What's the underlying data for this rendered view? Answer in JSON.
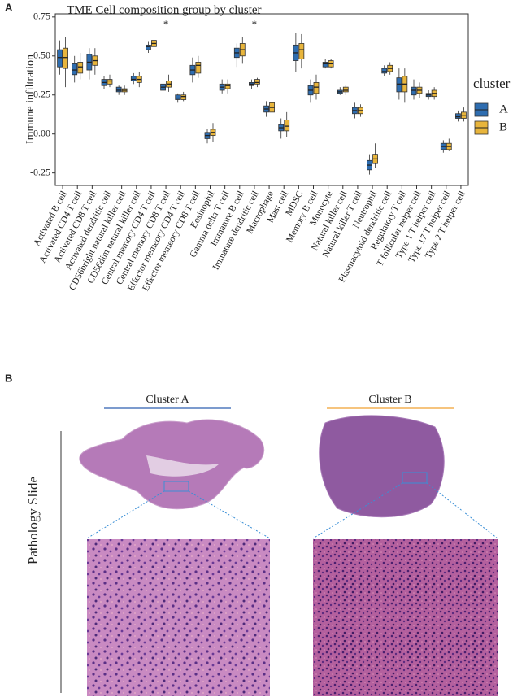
{
  "panel_labels": [
    "A",
    "B"
  ],
  "chart_data": {
    "type": "boxplot",
    "title": "TME Cell composition group by cluster",
    "y_label": "Immune infiltration",
    "legend_title": "cluster",
    "categories": [
      "Activated B cell",
      "Activated CD4 T cell",
      "Activated CD8 T cell",
      "Activated dendritic cell",
      "CD56bright natural killer cell",
      "CD56dim natural killer cell",
      "Central memory CD4 T cell",
      "Central memory CD8 T cell",
      "Effector memeory CD4 T cell",
      "Effector memeory CD8 T cell",
      "Eosinophil",
      "Gamma delta T cell",
      "Immature  B cell",
      "Immature dendritic cell",
      "Macrophage",
      "Mast cell",
      "MDSC",
      "Memory B cell",
      "Monocyte",
      "Natural killer cell",
      "Natural killer T cell",
      "Neutrophil",
      "Plasmacytoid dendritic cell",
      "Regulatory T cell",
      "T follicular helper cell",
      "Type 1 T helper cell",
      "Type 17 T helper cell",
      "Type 2 T helper cell"
    ],
    "significance": [
      null,
      null,
      null,
      null,
      null,
      null,
      null,
      "*",
      null,
      null,
      null,
      null,
      null,
      "*",
      null,
      null,
      null,
      null,
      null,
      null,
      null,
      null,
      null,
      null,
      null,
      null,
      null,
      null
    ],
    "ylim": [
      -0.33,
      0.77
    ],
    "yticks": [
      -0.25,
      {
        "value": 0,
        "label": "0.00"
      },
      0.25,
      {
        "value": 0.5,
        "label": "0.50"
      },
      0.75
    ],
    "series": [
      {
        "name": "A",
        "color": "#2e6db0",
        "low": [
          0.38,
          0.33,
          0.35,
          0.29,
          0.25,
          0.32,
          0.52,
          0.26,
          0.2,
          0.33,
          -0.06,
          0.26,
          0.43,
          0.29,
          0.11,
          -0.03,
          0.4,
          0.2,
          0.42,
          0.25,
          0.1,
          -0.26,
          0.37,
          0.22,
          0.22,
          0.22,
          -0.12,
          0.08
        ],
        "q1": [
          0.43,
          0.38,
          0.41,
          0.31,
          0.27,
          0.34,
          0.54,
          0.28,
          0.22,
          0.38,
          -0.03,
          0.28,
          0.49,
          0.31,
          0.14,
          0.02,
          0.47,
          0.25,
          0.43,
          0.26,
          0.13,
          -0.23,
          0.39,
          0.27,
          0.25,
          0.24,
          -0.1,
          0.1
        ],
        "median": [
          0.49,
          0.41,
          0.46,
          0.33,
          0.28,
          0.35,
          0.56,
          0.3,
          0.23,
          0.41,
          -0.01,
          0.3,
          0.52,
          0.32,
          0.16,
          0.04,
          0.52,
          0.28,
          0.45,
          0.27,
          0.15,
          -0.2,
          0.4,
          0.32,
          0.28,
          0.25,
          -0.08,
          0.11
        ],
        "q3": [
          0.54,
          0.45,
          0.51,
          0.35,
          0.3,
          0.37,
          0.57,
          0.32,
          0.25,
          0.44,
          0.01,
          0.32,
          0.55,
          0.33,
          0.18,
          0.06,
          0.57,
          0.31,
          0.46,
          0.28,
          0.17,
          -0.17,
          0.42,
          0.36,
          0.3,
          0.26,
          -0.06,
          0.13
        ],
        "high": [
          0.6,
          0.5,
          0.55,
          0.37,
          0.31,
          0.39,
          0.59,
          0.34,
          0.26,
          0.49,
          0.03,
          0.35,
          0.58,
          0.35,
          0.21,
          0.1,
          0.65,
          0.35,
          0.48,
          0.3,
          0.2,
          -0.13,
          0.44,
          0.42,
          0.35,
          0.28,
          -0.04,
          0.15
        ]
      },
      {
        "name": "B",
        "color": "#e8b53c",
        "low": [
          0.3,
          0.35,
          0.38,
          0.3,
          0.25,
          0.3,
          0.54,
          0.27,
          0.21,
          0.36,
          -0.05,
          0.26,
          0.45,
          0.3,
          0.12,
          -0.02,
          0.42,
          0.22,
          0.42,
          0.25,
          0.11,
          -0.22,
          0.38,
          0.2,
          0.23,
          0.22,
          -0.11,
          0.08
        ],
        "q1": [
          0.42,
          0.39,
          0.44,
          0.32,
          0.27,
          0.33,
          0.56,
          0.3,
          0.22,
          0.39,
          -0.01,
          0.29,
          0.5,
          0.32,
          0.14,
          0.02,
          0.48,
          0.26,
          0.43,
          0.27,
          0.13,
          -0.19,
          0.4,
          0.27,
          0.26,
          0.24,
          -0.1,
          0.1
        ],
        "median": [
          0.49,
          0.43,
          0.47,
          0.34,
          0.28,
          0.35,
          0.58,
          0.32,
          0.24,
          0.44,
          0.01,
          0.31,
          0.54,
          0.33,
          0.17,
          0.05,
          0.54,
          0.3,
          0.45,
          0.28,
          0.15,
          -0.16,
          0.42,
          0.32,
          0.28,
          0.26,
          -0.08,
          0.12
        ],
        "q3": [
          0.55,
          0.46,
          0.5,
          0.35,
          0.29,
          0.37,
          0.6,
          0.34,
          0.25,
          0.46,
          0.03,
          0.32,
          0.58,
          0.35,
          0.2,
          0.09,
          0.58,
          0.33,
          0.47,
          0.3,
          0.17,
          -0.13,
          0.44,
          0.37,
          0.3,
          0.28,
          -0.06,
          0.14
        ],
        "high": [
          0.62,
          0.52,
          0.55,
          0.38,
          0.31,
          0.4,
          0.62,
          0.38,
          0.27,
          0.5,
          0.07,
          0.35,
          0.62,
          0.36,
          0.24,
          0.14,
          0.64,
          0.38,
          0.48,
          0.31,
          0.19,
          -0.06,
          0.46,
          0.42,
          0.33,
          0.3,
          -0.03,
          0.17
        ]
      }
    ]
  },
  "panel_b": {
    "columns": [
      "Cluster A",
      "Cluster B"
    ],
    "row_label": "Pathology Slide"
  }
}
